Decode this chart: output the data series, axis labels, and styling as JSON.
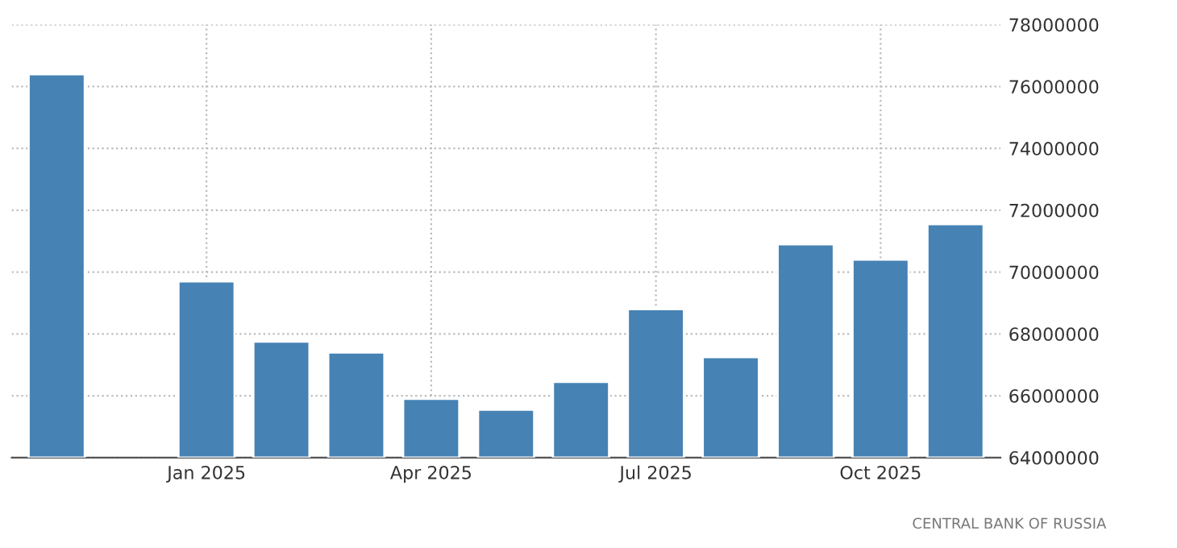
{
  "chart_data": {
    "type": "bar",
    "categories": [
      null,
      null,
      "Jan 2025",
      null,
      null,
      "Apr 2025",
      null,
      null,
      "Jul 2025",
      null,
      null,
      "Oct 2025",
      null
    ],
    "values": [
      76400000,
      null,
      69700000,
      67750000,
      67400000,
      65900000,
      65550000,
      66450000,
      68800000,
      67250000,
      70900000,
      70400000,
      71550000
    ],
    "color": "#4682b4",
    "ylim": [
      64000000,
      78000000
    ],
    "yticks": [
      64000000,
      66000000,
      68000000,
      70000000,
      72000000,
      74000000,
      76000000,
      78000000
    ],
    "grid": true,
    "annotations": [
      "CENTRAL BANK OF RUSSIA"
    ]
  }
}
